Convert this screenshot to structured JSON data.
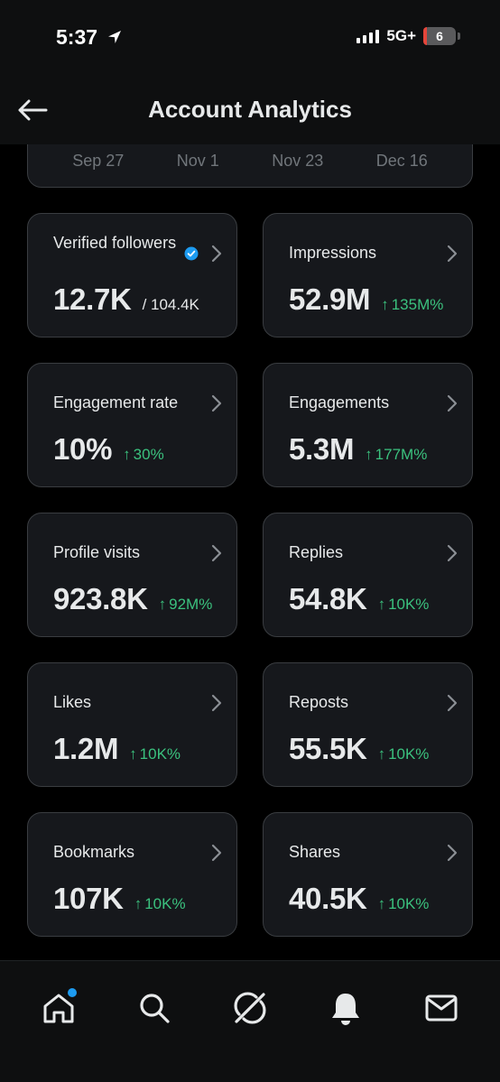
{
  "status_bar": {
    "time": "5:37",
    "network": "5G+",
    "battery": "6",
    "battery_fraction": 0.06
  },
  "header": {
    "title": "Account Analytics",
    "back_icon": "back-arrow-icon"
  },
  "date_range": {
    "labels": [
      "Sep 27",
      "Nov 1",
      "Nov 23",
      "Dec 16"
    ]
  },
  "metrics": [
    {
      "label": "Verified followers",
      "value": "12.7K",
      "total": "/ 104.4K",
      "delta": "",
      "verified_badge": true
    },
    {
      "label": "Impressions",
      "value": "52.9M",
      "total": "",
      "delta": "135M%"
    },
    {
      "label": "Engagement rate",
      "value": "10%",
      "total": "",
      "delta": "30%"
    },
    {
      "label": "Engagements",
      "value": "5.3M",
      "total": "",
      "delta": "177M%"
    },
    {
      "label": "Profile visits",
      "value": "923.8K",
      "total": "",
      "delta": "92M%"
    },
    {
      "label": "Replies",
      "value": "54.8K",
      "total": "",
      "delta": "10K%"
    },
    {
      "label": "Likes",
      "value": "1.2M",
      "total": "",
      "delta": "10K%"
    },
    {
      "label": "Reposts",
      "value": "55.5K",
      "total": "",
      "delta": "10K%"
    },
    {
      "label": "Bookmarks",
      "value": "107K",
      "total": "",
      "delta": "10K%"
    },
    {
      "label": "Shares",
      "value": "40.5K",
      "total": "",
      "delta": "10K%"
    }
  ],
  "bottom_nav": {
    "items": [
      {
        "icon": "home-icon",
        "notification_dot": true
      },
      {
        "icon": "search-icon",
        "notification_dot": false
      },
      {
        "icon": "grok-icon",
        "notification_dot": false
      },
      {
        "icon": "bell-icon",
        "notification_dot": false
      },
      {
        "icon": "mail-icon",
        "notification_dot": false
      }
    ]
  },
  "colors": {
    "background": "#000000",
    "card": "#16181c",
    "border": "#3a3d41",
    "positive": "#3bc17e",
    "verified": "#1d9bf0",
    "battery_low": "#e5453a"
  }
}
